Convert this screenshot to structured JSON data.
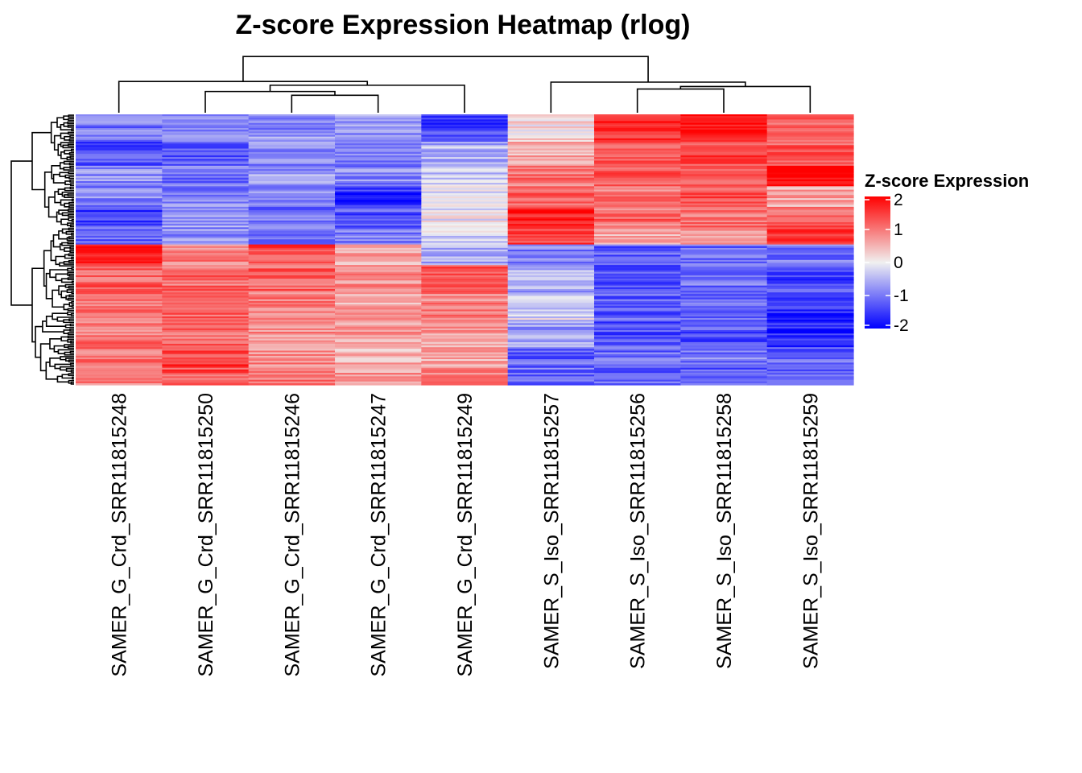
{
  "chart_data": {
    "type": "heatmap",
    "title": "Z-score Expression Heatmap (rlog)",
    "xlabel": "",
    "ylabel": "",
    "columns": [
      "SAMER_G_Crd_SRR11815248",
      "SAMER_G_Crd_SRR11815250",
      "SAMER_G_Crd_SRR11815246",
      "SAMER_G_Crd_SRR11815247",
      "SAMER_G_Crd_SRR11815249",
      "SAMER_S_Iso_SRR11815257",
      "SAMER_S_Iso_SRR11815256",
      "SAMER_S_Iso_SRR11815258",
      "SAMER_S_Iso_SRR11815259"
    ],
    "value_range": [
      -2,
      2
    ],
    "row_blocks": [
      {
        "rows": 16,
        "values": [
          -1.0,
          -0.9,
          -0.8,
          -0.8,
          -1.5,
          0.2,
          1.7,
          1.9,
          1.1
        ]
      },
      {
        "rows": 14,
        "values": [
          -1.4,
          -1.2,
          -0.9,
          -1.0,
          -0.5,
          0.6,
          1.2,
          1.4,
          1.2
        ]
      },
      {
        "rows": 12,
        "values": [
          -0.8,
          -1.0,
          -0.7,
          -0.9,
          -0.3,
          1.0,
          1.3,
          1.3,
          2.1
        ]
      },
      {
        "rows": 12,
        "values": [
          -0.9,
          -0.9,
          -0.9,
          -1.6,
          -0.1,
          1.2,
          1.0,
          1.3,
          0.6
        ]
      },
      {
        "rows": 12,
        "values": [
          -1.5,
          -0.7,
          -1.0,
          -1.3,
          0.0,
          1.7,
          1.1,
          1.0,
          1.2
        ]
      },
      {
        "rows": 10,
        "values": [
          -1.2,
          -0.8,
          -1.1,
          -1.0,
          -0.2,
          1.4,
          0.6,
          0.8,
          1.4
        ]
      },
      {
        "rows": 12,
        "values": [
          1.9,
          1.0,
          1.4,
          0.6,
          -0.5,
          -0.9,
          -1.2,
          -1.1,
          -1.0
        ]
      },
      {
        "rows": 16,
        "values": [
          1.2,
          1.1,
          1.2,
          0.8,
          1.3,
          -0.6,
          -1.3,
          -1.1,
          -1.4
        ]
      },
      {
        "rows": 16,
        "values": [
          1.0,
          1.2,
          1.0,
          0.6,
          0.9,
          -0.2,
          -1.2,
          -1.2,
          -1.6
        ]
      },
      {
        "rows": 16,
        "values": [
          1.0,
          1.1,
          0.8,
          0.7,
          0.7,
          -0.7,
          -1.3,
          -1.3,
          -1.7
        ]
      },
      {
        "rows": 12,
        "values": [
          1.1,
          1.5,
          0.8,
          0.5,
          0.6,
          -1.2,
          -1.1,
          -1.0,
          -1.2
        ]
      },
      {
        "rows": 10,
        "values": [
          1.0,
          1.3,
          1.0,
          0.7,
          0.9,
          -1.1,
          -1.2,
          -1.3,
          -1.2
        ]
      }
    ],
    "column_dendrogram": {
      "leaf_order": [
        0,
        1,
        2,
        3,
        4,
        5,
        6,
        7,
        8
      ],
      "merges": [
        {
          "left": "2",
          "right": "3",
          "height": 0.28
        },
        {
          "left": "6",
          "right": "7",
          "height": 0.38
        },
        {
          "left": "1",
          "right": "(2,3)",
          "height": 0.34
        },
        {
          "left": "(6,7)",
          "right": "8",
          "height": 0.42
        },
        {
          "left": "5",
          "right": "((6,7),8)",
          "height": 0.49
        },
        {
          "left": "(1,(2,3))",
          "right": "4",
          "height": 0.44
        },
        {
          "left": "0",
          "right": "((1,(2,3)),4)",
          "height": 0.5
        },
        {
          "left": "all_G_Crd",
          "right": "all_S_Iso",
          "height": 0.9
        }
      ]
    },
    "legend": {
      "title": "Z-score Expression",
      "ticks": [
        2,
        1,
        0,
        -1,
        -2
      ],
      "tick_labels": [
        "2",
        "1",
        "0",
        "-1",
        "-2"
      ],
      "colors": {
        "low": "#0000FF",
        "mid": "#F0F0F0",
        "high": "#FF0000"
      }
    }
  }
}
